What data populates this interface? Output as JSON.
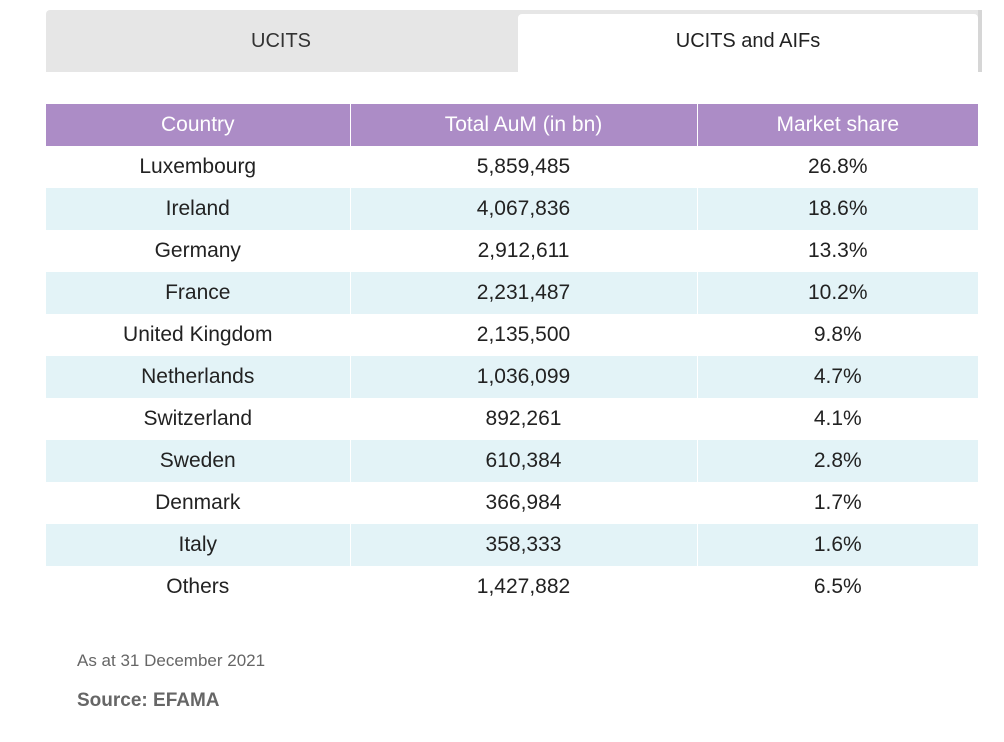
{
  "tabs": [
    {
      "label": "UCITS",
      "active": false
    },
    {
      "label": "UCITS and AIFs",
      "active": true
    }
  ],
  "table": {
    "headers": [
      "Country",
      "Total AuM (in bn)",
      "Market share"
    ],
    "rows": [
      [
        "Luxembourg",
        "5,859,485",
        "26.8%"
      ],
      [
        "Ireland",
        "4,067,836",
        "18.6%"
      ],
      [
        "Germany",
        "2,912,611",
        "13.3%"
      ],
      [
        "France",
        "2,231,487",
        "10.2%"
      ],
      [
        "United Kingdom",
        "2,135,500",
        "9.8%"
      ],
      [
        "Netherlands",
        "1,036,099",
        "4.7%"
      ],
      [
        "Switzerland",
        "892,261",
        "4.1%"
      ],
      [
        "Sweden",
        "610,384",
        "2.8%"
      ],
      [
        "Denmark",
        "366,984",
        "1.7%"
      ],
      [
        "Italy",
        "358,333",
        "1.6%"
      ],
      [
        "Others",
        "1,427,882",
        "6.5%"
      ]
    ]
  },
  "footer": {
    "date_note": "As at 31 December 2021",
    "source": "Source: EFAMA"
  },
  "colors": {
    "header_bg": "#ac8cc6",
    "stripe_bg": "#e3f3f7",
    "tab_inactive_bg": "#e6e6e6",
    "tab_active_bg": "#ffffff"
  }
}
